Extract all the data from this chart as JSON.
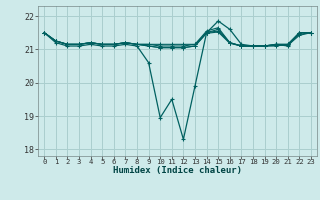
{
  "xlabel": "Humidex (Indice chaleur)",
  "bg_color": "#ceeaea",
  "grid_color": "#aacece",
  "line_color": "#006060",
  "xlim": [
    -0.5,
    23.5
  ],
  "ylim": [
    17.8,
    22.3
  ],
  "yticks": [
    18,
    19,
    20,
    21,
    22
  ],
  "xticks": [
    0,
    1,
    2,
    3,
    4,
    5,
    6,
    7,
    8,
    9,
    10,
    11,
    12,
    13,
    14,
    15,
    16,
    17,
    18,
    19,
    20,
    21,
    22,
    23
  ],
  "series": [
    [
      21.5,
      21.25,
      21.15,
      21.15,
      21.2,
      21.15,
      21.15,
      21.2,
      21.15,
      21.15,
      21.15,
      21.15,
      21.15,
      21.15,
      21.55,
      21.65,
      21.2,
      21.1,
      21.1,
      21.1,
      21.1,
      21.15,
      21.5,
      21.5
    ],
    [
      21.5,
      21.25,
      21.15,
      21.15,
      21.2,
      21.15,
      21.15,
      21.2,
      21.15,
      21.15,
      21.1,
      21.1,
      21.1,
      21.15,
      21.5,
      21.6,
      21.2,
      21.1,
      21.1,
      21.1,
      21.15,
      21.15,
      21.5,
      21.5
    ],
    [
      21.5,
      21.25,
      21.15,
      21.15,
      21.2,
      21.15,
      21.15,
      21.2,
      21.15,
      21.1,
      21.05,
      21.05,
      21.05,
      21.1,
      21.5,
      21.55,
      21.2,
      21.1,
      21.1,
      21.1,
      21.15,
      21.15,
      21.45,
      21.5
    ],
    [
      21.5,
      21.25,
      21.15,
      21.15,
      21.2,
      21.15,
      21.15,
      21.2,
      21.15,
      21.1,
      21.05,
      21.05,
      21.05,
      21.1,
      21.48,
      21.52,
      21.18,
      21.1,
      21.1,
      21.1,
      21.12,
      21.12,
      21.42,
      21.5
    ]
  ],
  "main_series_y": [
    21.5,
    21.2,
    21.1,
    21.1,
    21.15,
    21.1,
    21.1,
    21.15,
    21.1,
    20.6,
    18.95,
    19.5,
    18.3,
    19.9,
    21.5,
    21.85,
    21.6,
    21.15,
    21.1,
    21.1,
    21.15,
    21.1,
    21.5,
    21.5
  ]
}
